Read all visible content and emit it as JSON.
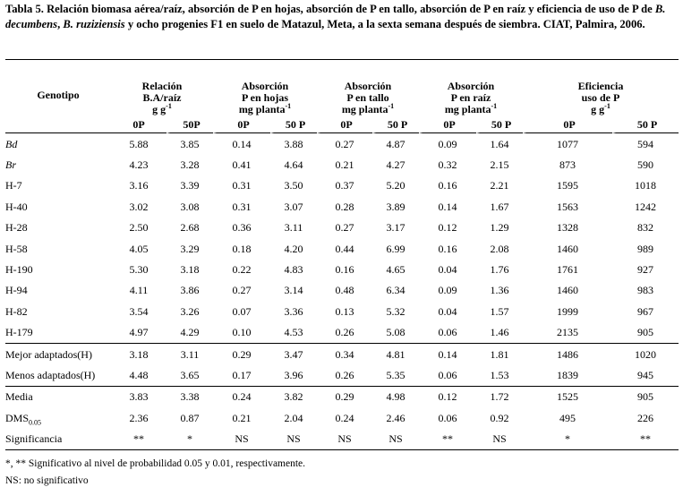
{
  "title": {
    "part1": "Tabla 5. Relación biomasa aérea/raíz, absorción de P en hojas, absorción de P en tallo, absorción de P en raíz y eficiencia de uso de P de ",
    "species1": "B. decumbens",
    "sep": ", ",
    "species2": "B. ruziziensis",
    "part2": " y ocho progenies F1 en suelo de Matazul, Meta, a la sexta semana después de siembra. CIAT, Palmira, 2006."
  },
  "header": {
    "genotipo": "Genotipo",
    "groups": [
      {
        "l1": "Relación",
        "l2": "B.A/raíz",
        "unit": "g g",
        "sup": "-1"
      },
      {
        "l1": "Absorción",
        "l2": "P en hojas",
        "unit": "mg planta",
        "sup": "-1"
      },
      {
        "l1": "Absorción",
        "l2": "P en tallo",
        "unit": "mg planta",
        "sup": "-1"
      },
      {
        "l1": "Absorción",
        "l2": "P en raíz",
        "unit": "mg planta",
        "sup": "-1"
      },
      {
        "l1": "Eficiencia",
        "l2": "uso de P",
        "unit": "g g",
        "sup": "-1"
      }
    ],
    "sub": [
      "0P",
      "50P",
      "0P",
      "50 P",
      "0P",
      "50 P",
      "0P",
      "50 P",
      "0P",
      "50 P"
    ]
  },
  "rows": [
    {
      "name": "Bd",
      "v": [
        "5.88",
        "3.85",
        "0.14",
        "3.88",
        "0.27",
        "4.87",
        "0.09",
        "1.64",
        "1077",
        "594"
      ]
    },
    {
      "name": "Br",
      "v": [
        "4.23",
        "3.28",
        "0.41",
        "4.64",
        "0.21",
        "4.27",
        "0.32",
        "2.15",
        "873",
        "590"
      ]
    },
    {
      "name": "H-7",
      "v": [
        "3.16",
        "3.39",
        "0.31",
        "3.50",
        "0.37",
        "5.20",
        "0.16",
        "2.21",
        "1595",
        "1018"
      ]
    },
    {
      "name": "H-40",
      "v": [
        "3.02",
        "3.08",
        "0.31",
        "3.07",
        "0.28",
        "3.89",
        "0.14",
        "1.67",
        "1563",
        "1242"
      ]
    },
    {
      "name": "H-28",
      "v": [
        "2.50",
        "2.68",
        "0.36",
        "3.11",
        "0.27",
        "3.17",
        "0.12",
        "1.29",
        "1328",
        "832"
      ]
    },
    {
      "name": "H-58",
      "v": [
        "4.05",
        "3.29",
        "0.18",
        "4.20",
        "0.44",
        "6.99",
        "0.16",
        "2.08",
        "1460",
        "989"
      ]
    },
    {
      "name": "H-190",
      "v": [
        "5.30",
        "3.18",
        "0.22",
        "4.83",
        "0.16",
        "4.65",
        "0.04",
        "1.76",
        "1761",
        "927"
      ]
    },
    {
      "name": "H-94",
      "v": [
        "4.11",
        "3.86",
        "0.27",
        "3.14",
        "0.48",
        "6.34",
        "0.09",
        "1.36",
        "1460",
        "983"
      ]
    },
    {
      "name": "H-82",
      "v": [
        "3.54",
        "3.26",
        "0.07",
        "3.36",
        "0.13",
        "5.32",
        "0.04",
        "1.57",
        "1999",
        "967"
      ]
    },
    {
      "name": "H-179",
      "v": [
        "4.97",
        "4.29",
        "0.10",
        "4.53",
        "0.26",
        "5.08",
        "0.06",
        "1.46",
        "2135",
        "905"
      ]
    },
    {
      "name": "Mejor adaptados(H)",
      "v": [
        "3.18",
        "3.11",
        "0.29",
        "3.47",
        "0.34",
        "4.81",
        "0.14",
        "1.81",
        "1486",
        "1020"
      ]
    },
    {
      "name": "Menos adaptados(H)",
      "v": [
        "4.48",
        "3.65",
        "0.17",
        "3.96",
        "0.26",
        "5.35",
        "0.06",
        "1.53",
        "1839",
        "945"
      ]
    },
    {
      "name": "Media",
      "v": [
        "3.83",
        "3.38",
        "0.24",
        "3.82",
        "0.29",
        "4.98",
        "0.12",
        "1.72",
        "1525",
        "905"
      ]
    },
    {
      "name": "DMS",
      "sub": "0.05",
      "v": [
        "2.36",
        "0.87",
        "0.21",
        "2.04",
        "0.24",
        "2.46",
        "0.06",
        "0.92",
        "495",
        "226"
      ]
    },
    {
      "name": "Significancia",
      "v": [
        "**",
        "*",
        "NS",
        "NS",
        "NS",
        "NS",
        "**",
        "NS",
        "*",
        "**"
      ]
    }
  ],
  "footnotes": [
    "*, ** Significativo al nivel de probabilidad 0.05 y 0.01, respectivamente.",
    "NS: no significativo"
  ]
}
